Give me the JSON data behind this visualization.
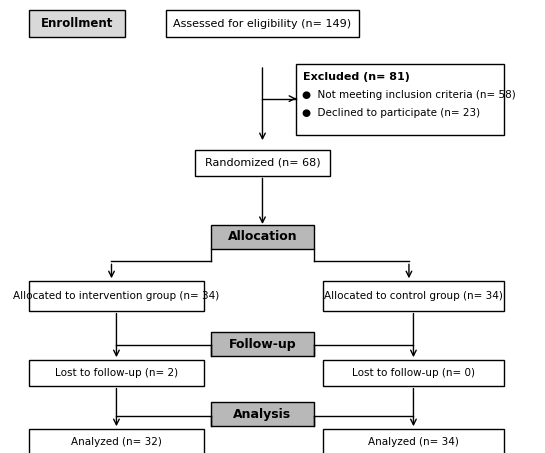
{
  "bg_color": "#ffffff",
  "enrollment_label": "Enrollment",
  "eligibility_text": "Assessed for eligibility (n= 149)",
  "excluded_title": "Excluded (n= 81)",
  "excluded_line1": "●  Not meeting inclusion criteria (n= 58)",
  "excluded_line2": "●  Declined to participate (n= 23)",
  "randomized_text": "Randomized (n= 68)",
  "allocation_text": "Allocation",
  "intervention_text": "Allocated to intervention group (n= 34)",
  "control_text": "Allocated to control group (n= 34)",
  "followup_text": "Follow-up",
  "lost_intervention_text": "Lost to follow-up (n= 2)",
  "lost_control_text": "Lost to follow-up (n= 0)",
  "analysis_text": "Analysis",
  "analyzed_intervention_text": "Analyzed (n= 32)",
  "analyzed_control_text": "Analyzed (n= 34)",
  "box_color_white": "#ffffff",
  "box_color_gray": "#c0c0c0",
  "border_color": "#000000",
  "text_color": "#000000",
  "arrow_color": "#000000"
}
